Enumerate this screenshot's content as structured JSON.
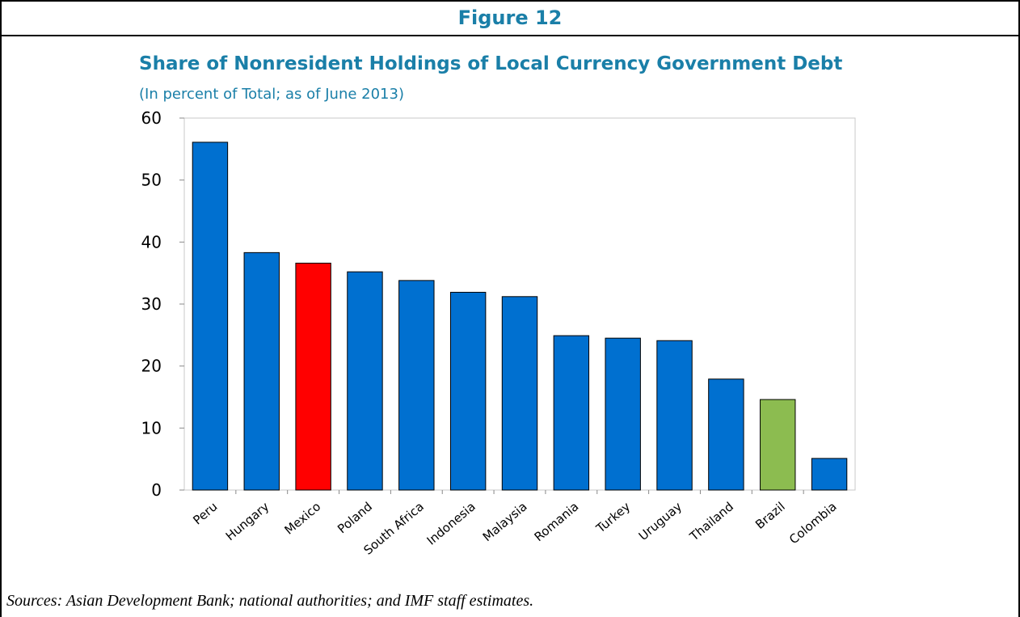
{
  "figure_label": "Figure 12",
  "colors": {
    "accent": "#1a7fa8",
    "default_bar": "#0070d0",
    "highlight_mexico": "#ff0000",
    "highlight_brazil": "#8cbc50"
  },
  "sources": "Sources: Asian Development Bank; national authorities; and IMF staff estimates.",
  "chart_data": {
    "type": "bar",
    "title": "Share of Nonresident Holdings of Local Currency Government Debt",
    "subtitle": "(In percent of Total; as of June 2013)",
    "xlabel": "",
    "ylabel": "",
    "ylim": [
      0,
      60
    ],
    "yticks": [
      0,
      10,
      20,
      30,
      40,
      50,
      60
    ],
    "grid": false,
    "categories": [
      "Peru",
      "Hungary",
      "Mexico",
      "Poland",
      "South Africa",
      "Indonesia",
      "Malaysia",
      "Romania",
      "Turkey",
      "Uruguay",
      "Thailand",
      "Brazil",
      "Colombia"
    ],
    "values": [
      56.1,
      38.3,
      36.6,
      35.2,
      33.8,
      31.9,
      31.2,
      24.9,
      24.5,
      24.1,
      17.9,
      14.6,
      5.1
    ],
    "bar_colors": [
      "#0070d0",
      "#0070d0",
      "#ff0000",
      "#0070d0",
      "#0070d0",
      "#0070d0",
      "#0070d0",
      "#0070d0",
      "#0070d0",
      "#0070d0",
      "#0070d0",
      "#8cbc50",
      "#0070d0"
    ]
  }
}
